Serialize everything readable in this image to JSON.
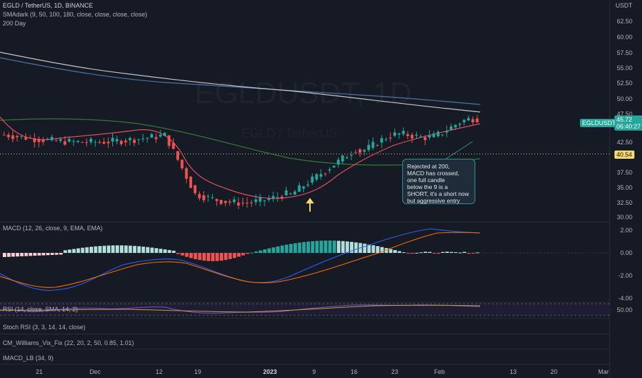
{
  "header": {
    "symbol_line": "EGLD / TetherUS, 1D, BINANCE",
    "sma_line": "SMAdark (9, 50, 100, 180, close, close, close, close)",
    "day200_line": "200 Day"
  },
  "watermark": {
    "main": "EGLDUSDT, 1D",
    "sub": "EGLD / TetherUS"
  },
  "price_axis": {
    "currency": "USDT",
    "labels": [
      "62.50",
      "60.00",
      "57.50",
      "55.00",
      "52.50",
      "50.00",
      "47.50",
      "42.50",
      "37.50",
      "35.00",
      "32.50",
      "30.00"
    ]
  },
  "tags": {
    "symbol": "EGLDUSDT",
    "price": "45.72",
    "countdown": "06:40:27",
    "level": "40.54"
  },
  "annotation": {
    "lines": [
      "Rejected at 200,",
      "MACD has crossed,",
      "one full candle",
      " below the 9 is a",
      "SHORT, it's a short now",
      "but aggressive entry"
    ]
  },
  "indicators": {
    "macd": "MACD (12, 26, close, 9, EMA, EMA)",
    "rsi": "RSI (14, close, SMA, 14, 2)",
    "stoch": "Stoch RSI (3, 3, 14, 14, close)",
    "vix": "CM_Williams_Vix_Fix (22, 20, 2, 50, 0.85, 1.01)",
    "imacd": "IMACD_LB (34, 9)"
  },
  "macd_axis": [
    "2.00",
    "0.00",
    "-2.00",
    "-4.00"
  ],
  "rsi_axis": "50.00",
  "date_axis": [
    "21",
    "Dec",
    "12",
    "19",
    "2023",
    "9",
    "16",
    "23",
    "Feb",
    "13",
    "20",
    "Mar"
  ],
  "colors": {
    "background": "#161a25",
    "up": "#26a69a",
    "down": "#ef5350",
    "ema9": "#e04f5f",
    "sma50": "#2e7d32",
    "sma100": "#4b77a7",
    "sma180": "#c9c9c9",
    "macd": "#2962ff",
    "signal": "#ff6d00",
    "rsi": "#7e57c2",
    "annotation_border": "#3a8c96",
    "arrow": "#f5d76e"
  },
  "chart_data": {
    "type": "candlestick",
    "ylim": [
      30,
      64
    ],
    "levels": {
      "dotted_support": 40.54,
      "last_price": 45.72
    },
    "x_ticks": [
      "21",
      "Dec",
      "12",
      "19",
      "2023",
      "9",
      "16",
      "23",
      "Feb",
      "13",
      "20",
      "Mar"
    ]
  }
}
